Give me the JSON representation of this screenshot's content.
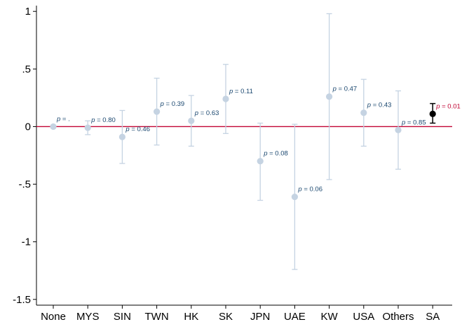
{
  "chart_data": {
    "type": "scatter",
    "subtype": "coefficient-plot-with-confidence-intervals",
    "categories": [
      "None",
      "MYS",
      "SIN",
      "TWN",
      "HK",
      "SK",
      "JPN",
      "UAE",
      "KW",
      "USA",
      "Others",
      "SA"
    ],
    "estimates": [
      0.0,
      -0.01,
      -0.09,
      0.13,
      0.05,
      0.24,
      -0.3,
      -0.61,
      0.26,
      0.12,
      -0.03,
      0.11
    ],
    "ci_lower": [
      0.0,
      -0.07,
      -0.32,
      -0.16,
      -0.17,
      -0.06,
      -0.64,
      -1.24,
      -0.46,
      -0.17,
      -0.37,
      0.03
    ],
    "ci_upper": [
      0.0,
      0.05,
      0.14,
      0.42,
      0.27,
      0.54,
      0.03,
      0.02,
      0.98,
      0.41,
      0.31,
      0.2
    ],
    "p_labels": [
      "p = .",
      "p = 0.80",
      "p = 0.46",
      "p = 0.39",
      "p = 0.63",
      "p = 0.11",
      "p = 0.08",
      "p = 0.06",
      "p = 0.47",
      "p = 0.43",
      "p = 0.85",
      "p = 0.01"
    ],
    "highlight_index": 11,
    "reference_line": 0,
    "ylim": [
      -1.55,
      1.05
    ],
    "yticks": [
      1,
      0.5,
      0,
      -0.5,
      -1,
      -1.5
    ],
    "ytick_labels": [
      "1",
      ".5",
      "0",
      "-.5",
      "-1",
      "-1.5"
    ],
    "xlabel": "",
    "ylabel": "",
    "title": "",
    "grid": false,
    "colors": {
      "default_marker": "#c5d3e2",
      "default_text": "#1a476f",
      "highlight_marker": "#000000",
      "highlight_text": "#c10534",
      "reference_line": "#c10534",
      "axis": "#000000"
    }
  }
}
